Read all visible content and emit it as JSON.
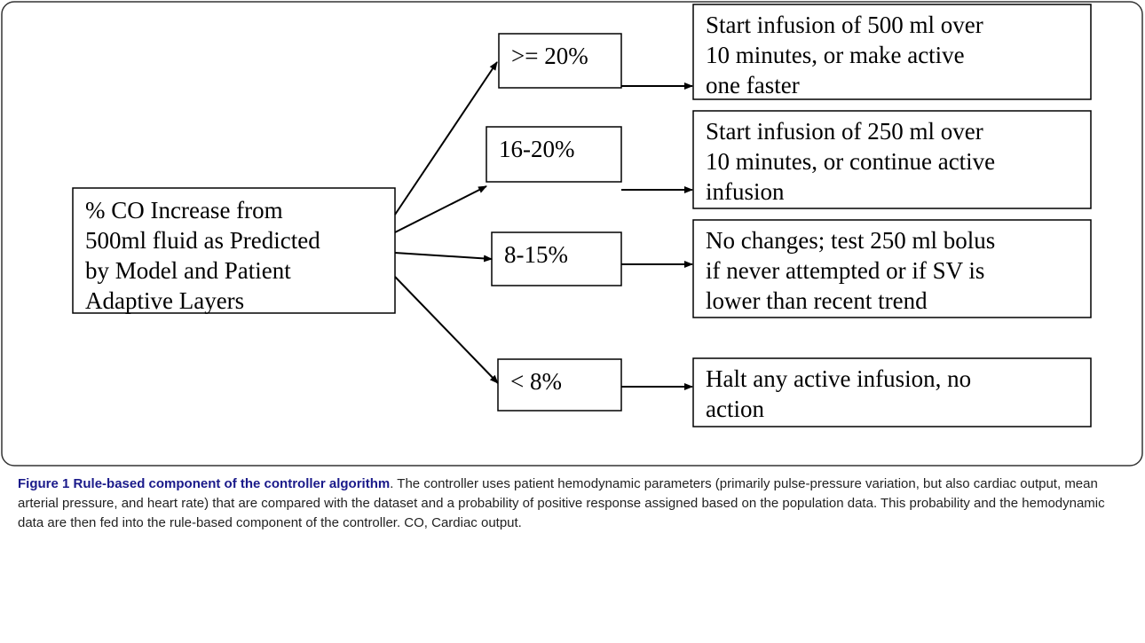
{
  "root": {
    "lines": [
      "% CO Increase from",
      "500ml fluid as Predicted",
      "by Model and Patient",
      "Adaptive Layers"
    ]
  },
  "branches": [
    {
      "condition": ">= 20%",
      "action": {
        "lines": [
          "Start infusion of 500 ml over",
          "10 minutes, or make active",
          "one faster"
        ]
      }
    },
    {
      "condition": "16-20%",
      "action": {
        "lines": [
          "Start infusion of 250 ml over",
          "10 minutes, or continue active",
          "infusion"
        ]
      }
    },
    {
      "condition": "8-15%",
      "action": {
        "lines": [
          "No changes; test 250 ml bolus",
          "if never attempted or if SV is",
          "lower than recent trend"
        ]
      }
    },
    {
      "condition": "< 8%",
      "action": {
        "lines": [
          "Halt any active infusion, no",
          "action"
        ]
      }
    }
  ],
  "caption": {
    "label": "Figure 1",
    "title": "Rule-based component of the controller algorithm",
    "text": ". The controller uses patient hemodynamic parameters (primarily pulse-pressure variation, but also cardiac output, mean arterial pressure, and heart rate) that are compared with the dataset and a probability of positive response assigned based on the population data. This probability and the hemodynamic data are then fed into the rule-based component of the controller. CO, Cardiac output."
  }
}
